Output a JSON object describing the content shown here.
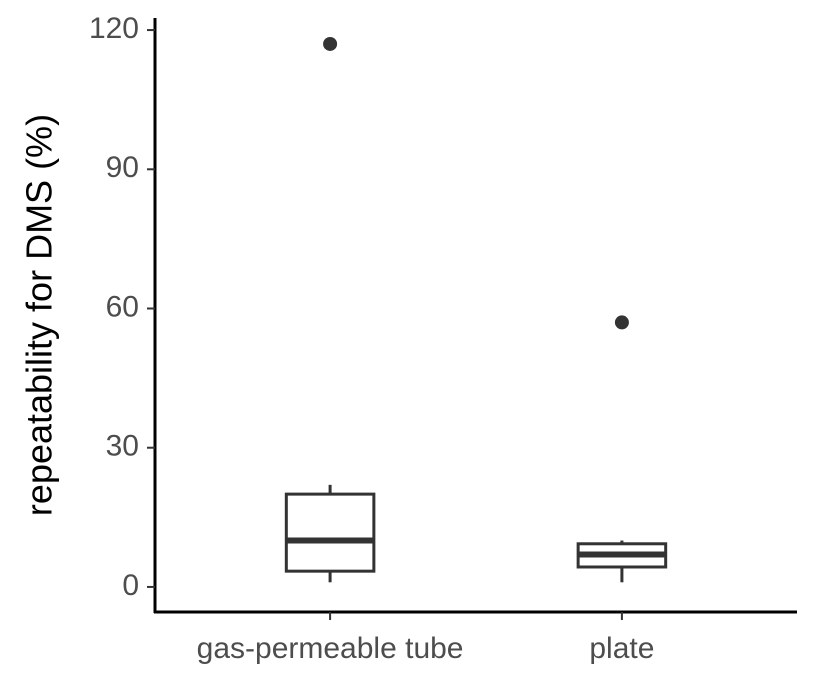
{
  "chart_data": {
    "type": "box",
    "y_label": "repeatability for DMS (%)",
    "categories": [
      "gas-permeable tube",
      "plate"
    ],
    "boxes": [
      {
        "whislo": 1,
        "q1": 3.4,
        "med": 10,
        "q3": 20,
        "whishi": 22,
        "fliers": [
          117
        ]
      },
      {
        "whislo": 1,
        "q1": 4.3,
        "med": 7,
        "q3": 9.3,
        "whishi": 10,
        "fliers": [
          57
        ]
      }
    ],
    "color": "#333333",
    "ylim": [
      -5.4,
      122.6
    ],
    "yticks": [
      0,
      30,
      60,
      90,
      120
    ],
    "grid": false
  }
}
